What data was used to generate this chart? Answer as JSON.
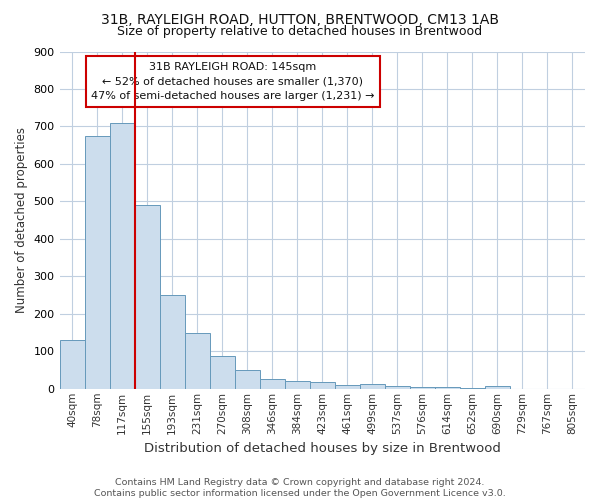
{
  "title1": "31B, RAYLEIGH ROAD, HUTTON, BRENTWOOD, CM13 1AB",
  "title2": "Size of property relative to detached houses in Brentwood",
  "xlabel": "Distribution of detached houses by size in Brentwood",
  "ylabel": "Number of detached properties",
  "bin_labels": [
    "40sqm",
    "78sqm",
    "117sqm",
    "155sqm",
    "193sqm",
    "231sqm",
    "270sqm",
    "308sqm",
    "346sqm",
    "384sqm",
    "423sqm",
    "461sqm",
    "499sqm",
    "537sqm",
    "576sqm",
    "614sqm",
    "652sqm",
    "690sqm",
    "729sqm",
    "767sqm",
    "805sqm"
  ],
  "bar_heights": [
    130,
    675,
    710,
    490,
    250,
    150,
    88,
    50,
    25,
    20,
    18,
    10,
    12,
    8,
    5,
    4,
    3,
    8,
    0,
    0,
    0
  ],
  "bar_color": "#ccdded",
  "bar_edge_color": "#6699bb",
  "vline_color": "#cc0000",
  "annotation_text": "31B RAYLEIGH ROAD: 145sqm\n← 52% of detached houses are smaller (1,370)\n47% of semi-detached houses are larger (1,231) →",
  "annotation_box_color": "#ffffff",
  "annotation_box_edge": "#cc0000",
  "ylim": [
    0,
    900
  ],
  "yticks": [
    0,
    100,
    200,
    300,
    400,
    500,
    600,
    700,
    800,
    900
  ],
  "footer": "Contains HM Land Registry data © Crown copyright and database right 2024.\nContains public sector information licensed under the Open Government Licence v3.0.",
  "bg_color": "#ffffff",
  "grid_color": "#c0cfe0"
}
